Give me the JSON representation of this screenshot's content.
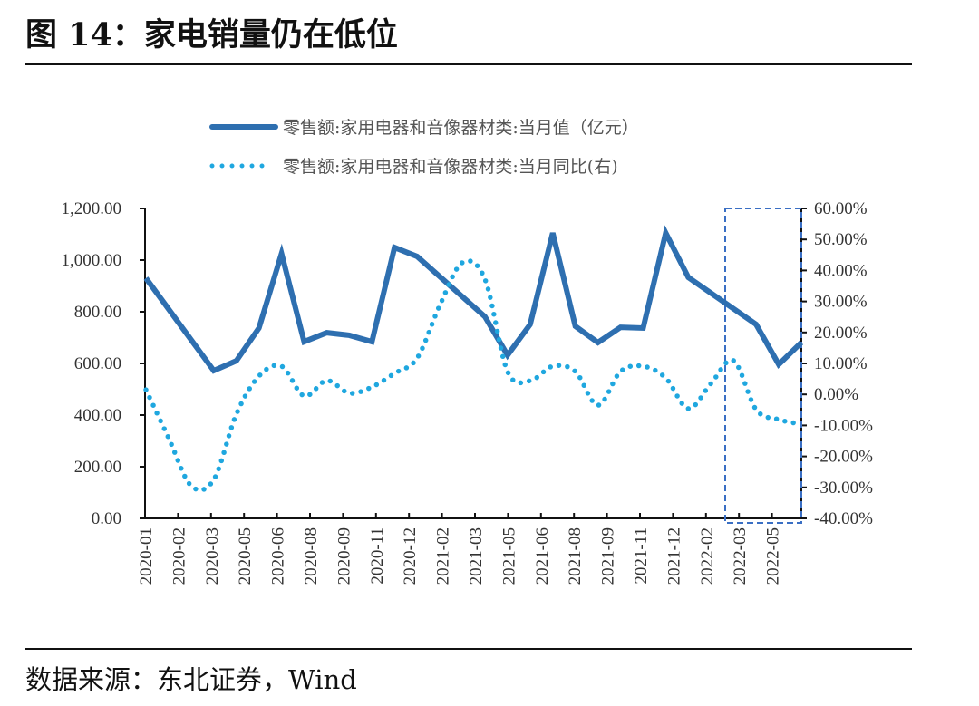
{
  "figure": {
    "title": "图 14：家电销量仍在低位",
    "source": "数据来源：东北证券，Wind"
  },
  "chart_data": {
    "type": "line",
    "title": "",
    "grid": false,
    "legend_position": "top-center",
    "x": [
      "2020-01",
      "2020-02",
      "2020-03",
      "2020-04",
      "2020-05",
      "2020-06",
      "2020-07",
      "2020-08",
      "2020-09",
      "2020-10",
      "2020-11",
      "2020-12",
      "2021-01",
      "2021-02",
      "2021-03",
      "2021-04",
      "2021-05",
      "2021-06",
      "2021-07",
      "2021-08",
      "2021-09",
      "2021-10",
      "2021-11",
      "2021-12",
      "2022-01",
      "2022-02",
      "2022-03",
      "2022-04",
      "2022-05",
      "2022-06"
    ],
    "x_tick_labels": [
      "2020-01",
      "2020-02",
      "2020-03",
      "2020-05",
      "2020-06",
      "2020-08",
      "2020-09",
      "2020-11",
      "2020-12",
      "2021-02",
      "2021-03",
      "2021-05",
      "2021-06",
      "2021-08",
      "2021-09",
      "2021-11",
      "2021-12",
      "2022-02",
      "2022-03",
      "2022-05"
    ],
    "y_left": {
      "ticks": [
        "0.00",
        "200.00",
        "400.00",
        "600.00",
        "800.00",
        "1,000.00",
        "1,200.00"
      ],
      "range": [
        0,
        1200
      ]
    },
    "y_right": {
      "ticks": [
        "-40.00%",
        "-30.00%",
        "-20.00%",
        "-10.00%",
        "0.00%",
        "10.00%",
        "20.00%",
        "30.00%",
        "40.00%",
        "50.00%",
        "60.00%"
      ],
      "range": [
        -40,
        60
      ]
    },
    "series": [
      {
        "name": "零售额:家用电器和音像器材类:当月值（亿元）",
        "axis": "left",
        "style": "solid",
        "color": "#2e6fb0",
        "values": [
          930,
          null,
          null,
          572,
          610,
          737,
          1025,
          684,
          719,
          709,
          684,
          1049,
          1014,
          null,
          null,
          781,
          632,
          751,
          1105,
          744,
          681,
          740,
          737,
          1105,
          933,
          null,
          null,
          751,
          596,
          681
        ]
      },
      {
        "name": "零售额:家用电器和音像器材类:当月同比(右)",
        "axis": "right",
        "style": "dotted",
        "color": "#1fa7df",
        "values": [
          1.5,
          -14,
          -29.5,
          -27.5,
          -6.4,
          5.9,
          9.1,
          -0.5,
          4.5,
          0.4,
          2.4,
          6.8,
          11.7,
          28.7,
          42.5,
          37.2,
          7.4,
          4.4,
          9.1,
          7.4,
          -3.5,
          7.4,
          9.1,
          5.3,
          -4.6,
          3.5,
          10.9,
          -4.9,
          -8.1,
          -9.6
        ]
      }
    ],
    "annotation": {
      "type": "dashed-box",
      "from": "2022-03",
      "to": "2022-06",
      "color": "#3a6fc4"
    }
  }
}
